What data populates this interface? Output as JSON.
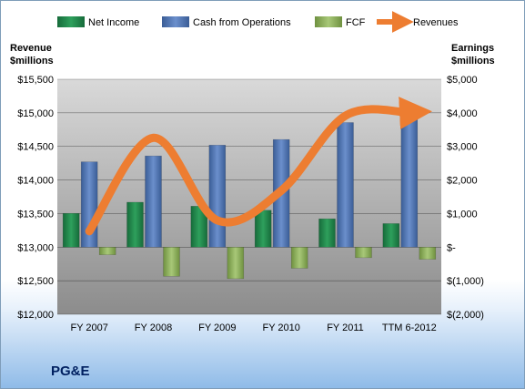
{
  "company": "PG&E",
  "chart_data": {
    "type": "bar",
    "categories": [
      "FY 2007",
      "FY 2008",
      "FY 2009",
      "FY 2010",
      "FY 2011",
      "TTM 6-2012"
    ],
    "series": [
      {
        "name": "Net Income",
        "axis": "right",
        "color": "#1f8a4c",
        "values": [
          1006,
          1338,
          1220,
          1099,
          844,
          702
        ]
      },
      {
        "name": "Cash from Operations",
        "axis": "right",
        "color": "#4f76b5",
        "values": [
          2541,
          2717,
          3039,
          3206,
          3711,
          4010
        ]
      },
      {
        "name": "FCF",
        "axis": "right",
        "color": "#8fb35b",
        "values": [
          -228,
          -868,
          -939,
          -629,
          -314,
          -362
        ]
      },
      {
        "name": "Revenues",
        "axis": "left",
        "type": "line",
        "color": "#ed7d31",
        "values": [
          13237,
          14628,
          13399,
          13841,
          14956,
          15005
        ]
      }
    ],
    "left_axis": {
      "title_lines": [
        "Revenue",
        "$millions"
      ],
      "min": 12000,
      "max": 15500,
      "step": 500,
      "ticks": [
        "$12,000",
        "$12,500",
        "$13,000",
        "$13,500",
        "$14,000",
        "$14,500",
        "$15,000",
        "$15,500"
      ]
    },
    "right_axis": {
      "title_lines": [
        "Earnings",
        "$millions"
      ],
      "min": -2000,
      "max": 5000,
      "step": 1000,
      "ticks": [
        "$(2,000)",
        "$(1,000)",
        "$-",
        "$1,000",
        "$2,000",
        "$3,000",
        "$4,000",
        "$5,000"
      ]
    },
    "grid": true,
    "legend_position": "top"
  }
}
